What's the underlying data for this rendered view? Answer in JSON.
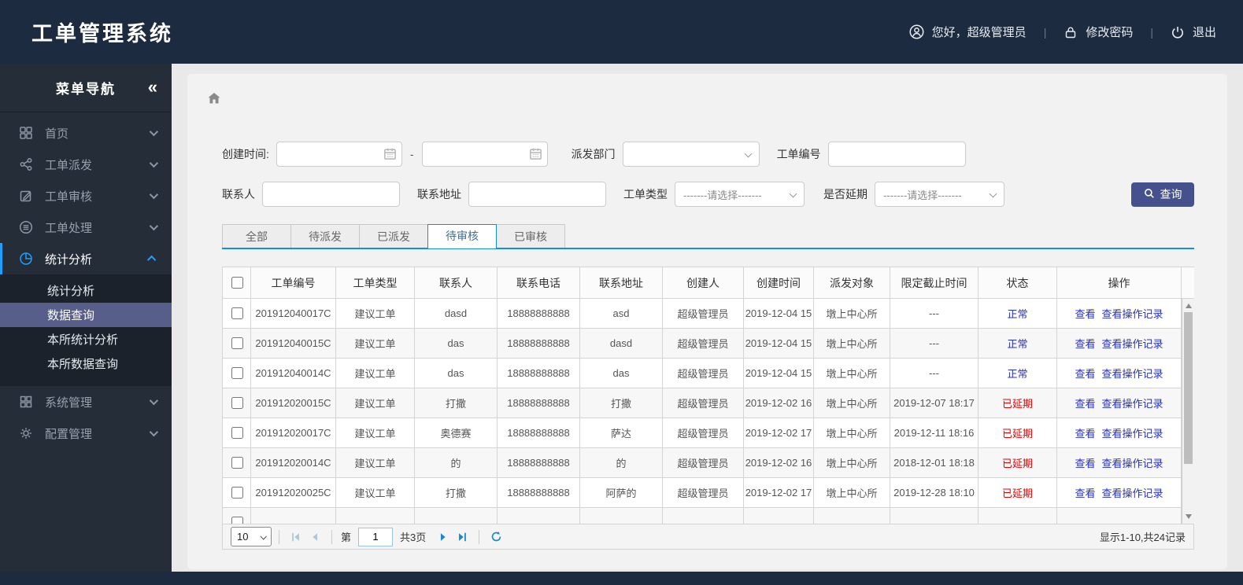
{
  "header": {
    "title": "工单管理系统",
    "greeting": "您好，超级管理员",
    "change_password": "修改密码",
    "logout": "退出",
    "separator": "|"
  },
  "sidebar": {
    "title": "菜单导航",
    "collapse_glyph": "«",
    "items": [
      {
        "label": "首页"
      },
      {
        "label": "工单派发"
      },
      {
        "label": "工单审核"
      },
      {
        "label": "工单处理"
      },
      {
        "label": "统计分析"
      },
      {
        "label": "系统管理"
      },
      {
        "label": "配置管理"
      }
    ],
    "submenu": [
      {
        "label": "统计分析"
      },
      {
        "label": "数据查询",
        "selected": true
      },
      {
        "label": "本所统计分析"
      },
      {
        "label": "本所数据查询"
      }
    ]
  },
  "filters": {
    "created_time_label": "创建时间:",
    "range_separator": "-",
    "dispatch_dept_label": "派发部门",
    "order_no_label": "工单编号",
    "contact_label": "联系人",
    "address_label": "联系地址",
    "order_type_label": "工单类型",
    "delay_label": "是否延期",
    "select_placeholder": "-------请选择-------",
    "search_button": "查询"
  },
  "tabs": [
    {
      "label": "全部"
    },
    {
      "label": "待派发"
    },
    {
      "label": "已派发"
    },
    {
      "label": "待审核",
      "active": true
    },
    {
      "label": "已审核"
    }
  ],
  "table": {
    "columns": [
      "工单编号",
      "工单类型",
      "联系人",
      "联系电话",
      "联系地址",
      "创建人",
      "创建时间",
      "派发对象",
      "限定截止时间",
      "状态",
      "操作"
    ],
    "actions": [
      "查看",
      "查看操作记录"
    ],
    "rows": [
      {
        "order_no": "201912040017C",
        "type": "建议工单",
        "contact": "dasd",
        "phone": "18888888888",
        "address": "asd",
        "creator": "超级管理员",
        "created": "2019-12-04 15",
        "target": "墩上中心所",
        "deadline": "---",
        "status": "正常",
        "status_type": "normal"
      },
      {
        "order_no": "201912040015C",
        "type": "建议工单",
        "contact": "das",
        "phone": "18888888888",
        "address": "dasd",
        "creator": "超级管理员",
        "created": "2019-12-04 15",
        "target": "墩上中心所",
        "deadline": "---",
        "status": "正常",
        "status_type": "normal"
      },
      {
        "order_no": "201912040014C",
        "type": "建议工单",
        "contact": "das",
        "phone": "18888888888",
        "address": "das",
        "creator": "超级管理员",
        "created": "2019-12-04 15",
        "target": "墩上中心所",
        "deadline": "---",
        "status": "正常",
        "status_type": "normal"
      },
      {
        "order_no": "201912020015C",
        "type": "建议工单",
        "contact": "打撒",
        "phone": "18888888888",
        "address": "打撒",
        "creator": "超级管理员",
        "created": "2019-12-02 16",
        "target": "墩上中心所",
        "deadline": "2019-12-07 18:17",
        "status": "已延期",
        "status_type": "delayed"
      },
      {
        "order_no": "201912020017C",
        "type": "建议工单",
        "contact": "奥德赛",
        "phone": "18888888888",
        "address": "萨达",
        "creator": "超级管理员",
        "created": "2019-12-02 17",
        "target": "墩上中心所",
        "deadline": "2019-12-11 18:16",
        "status": "已延期",
        "status_type": "delayed"
      },
      {
        "order_no": "201912020014C",
        "type": "建议工单",
        "contact": "的",
        "phone": "18888888888",
        "address": "的",
        "creator": "超级管理员",
        "created": "2019-12-02 16",
        "target": "墩上中心所",
        "deadline": "2018-12-01 18:18",
        "status": "已延期",
        "status_type": "delayed"
      },
      {
        "order_no": "201912020025C",
        "type": "建议工单",
        "contact": "打撒",
        "phone": "18888888888",
        "address": "阿萨的",
        "creator": "超级管理员",
        "created": "2019-12-02 17",
        "target": "墩上中心所",
        "deadline": "2019-12-28 18:10",
        "status": "已延期",
        "status_type": "delayed"
      }
    ]
  },
  "pagination": {
    "page_size": "10",
    "page_label_prefix": "第",
    "page_value": "1",
    "total_pages": "共3页",
    "summary": "显示1-10,共24记录"
  },
  "colors": {
    "accent": "#1e9fff",
    "link": "#2630c9",
    "delayed": "#e60000",
    "button": "#44518d",
    "header_bg": "#1d2b40"
  }
}
